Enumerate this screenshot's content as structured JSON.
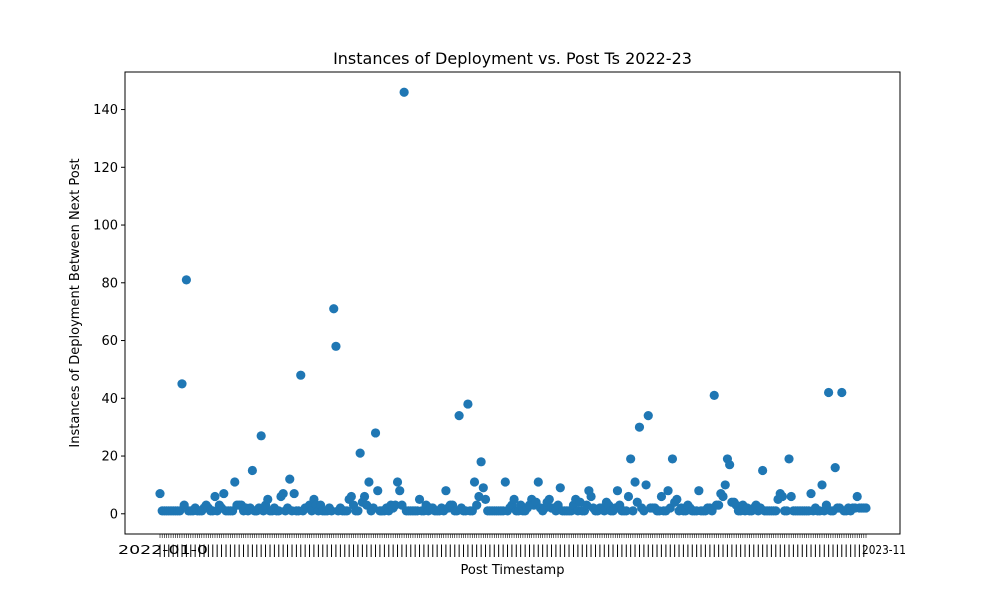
{
  "chart_data": {
    "type": "scatter",
    "title": "Instances of Deployment vs. Post Ts 2022-23",
    "xlabel": "Post Timestamp",
    "ylabel": "Instances of Deployment Between Next Post",
    "ylim": [
      -7,
      153
    ],
    "y_ticks": [
      0,
      20,
      40,
      60,
      80,
      100,
      120,
      140
    ],
    "grid": false,
    "legend": "none",
    "color": "#1f77b4",
    "x_tick_labels_overlapping": true,
    "series": [
      {
        "values": [
          7,
          1,
          1,
          1,
          1,
          1,
          1,
          1,
          1,
          1,
          45,
          3,
          81,
          1,
          1,
          1,
          2,
          1,
          1,
          1,
          2,
          3,
          2,
          1,
          1,
          6,
          1,
          3,
          2,
          7,
          1,
          1,
          1,
          1,
          11,
          3,
          3,
          3,
          1,
          2,
          1,
          2,
          15,
          1,
          1,
          2,
          27,
          1,
          3,
          5,
          1,
          1,
          2,
          1,
          1,
          6,
          7,
          1,
          2,
          12,
          1,
          7,
          1,
          1,
          48,
          1,
          2,
          2,
          3,
          1,
          5,
          3,
          1,
          3,
          1,
          1,
          1,
          2,
          1,
          71,
          58,
          1,
          2,
          1,
          1,
          1,
          5,
          6,
          3,
          1,
          1,
          21,
          4,
          6,
          3,
          11,
          1,
          2,
          28,
          8,
          1,
          1,
          1,
          2,
          1,
          3,
          2,
          3,
          11,
          8,
          3,
          146,
          1,
          1,
          1,
          1,
          1,
          1,
          5,
          1,
          1,
          3,
          1,
          2,
          2,
          1,
          1,
          1,
          2,
          1,
          8,
          2,
          3,
          3,
          1,
          1,
          34,
          2,
          1,
          1,
          38,
          1,
          1,
          11,
          3,
          6,
          18,
          9,
          5,
          1,
          1,
          1,
          1,
          1,
          1,
          1,
          1,
          11,
          1,
          2,
          3,
          5,
          1,
          1,
          3,
          1,
          1,
          2,
          3,
          5,
          3,
          4,
          11,
          2,
          1,
          2,
          4,
          5,
          2,
          2,
          1,
          3,
          9,
          1,
          1,
          1,
          1,
          1,
          3,
          5,
          1,
          4,
          1,
          1,
          3,
          8,
          6,
          2,
          1,
          1,
          2,
          2,
          1,
          4,
          3,
          1,
          1,
          2,
          8,
          3,
          1,
          1,
          1,
          6,
          19,
          1,
          11,
          4,
          30,
          2,
          1,
          10,
          34,
          2,
          2,
          2,
          1,
          1,
          6,
          1,
          1,
          8,
          2,
          19,
          4,
          5,
          1,
          2,
          1,
          1,
          3,
          2,
          1,
          1,
          1,
          8,
          1,
          1,
          1,
          2,
          2,
          1,
          41,
          3,
          3,
          7,
          6,
          10,
          19,
          17,
          4,
          4,
          3,
          1,
          1,
          3,
          1,
          2,
          1,
          1,
          2,
          3,
          1,
          2,
          15,
          1,
          1,
          1,
          1,
          1,
          1,
          5,
          7,
          6,
          1,
          1,
          19,
          6,
          1,
          1,
          1,
          1,
          1,
          1,
          1,
          1,
          7,
          1,
          2,
          1,
          1,
          10,
          1,
          3,
          42,
          1,
          1,
          16,
          2,
          2,
          42,
          1,
          1,
          2,
          1,
          2,
          2,
          6,
          2,
          2,
          2,
          2
        ]
      }
    ]
  }
}
